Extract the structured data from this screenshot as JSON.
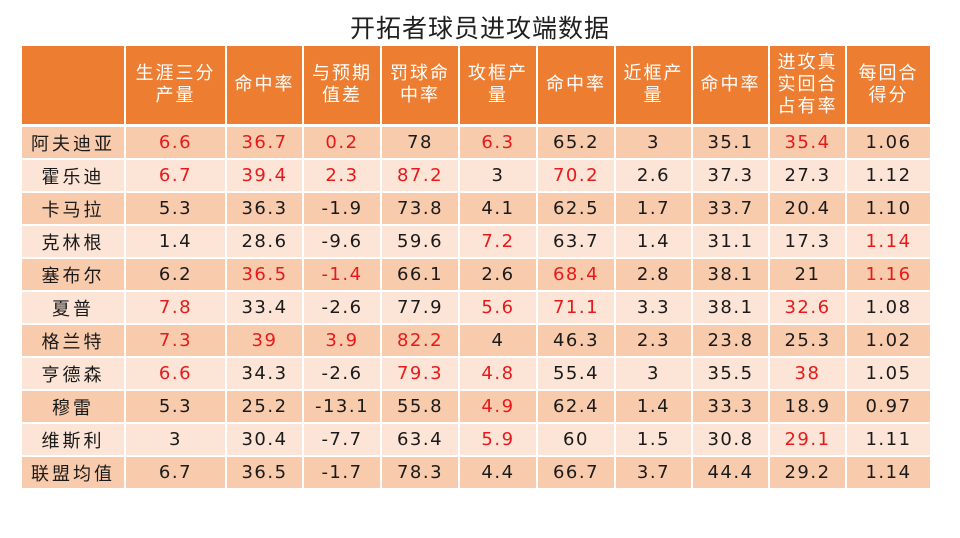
{
  "title": "开拓者球员进攻端数据",
  "colors": {
    "header_bg": "#ed7d31",
    "row_odd": "#f8cbad",
    "row_even": "#fce4d6",
    "highlight": "#e8191a"
  },
  "chart_data": {
    "type": "table",
    "title": "开拓者球员进攻端数据",
    "columns": [
      "",
      "生涯三分产量",
      "命中率",
      "与预期值差",
      "罚球命中率",
      "攻框产量",
      "命中率",
      "近框产量",
      "命中率",
      "进攻真实回合占有率",
      "每回合得分"
    ],
    "rows": [
      {
        "name": "阿夫迪亚",
        "values": [
          "6.6",
          "36.7",
          "0.2",
          "78",
          "6.3",
          "65.2",
          "3",
          "35.1",
          "35.4",
          "1.06"
        ],
        "highlight": [
          0,
          1,
          2,
          4,
          8
        ]
      },
      {
        "name": "霍乐迪",
        "values": [
          "6.7",
          "39.4",
          "2.3",
          "87.2",
          "3",
          "70.2",
          "2.6",
          "37.3",
          "27.3",
          "1.12"
        ],
        "highlight": [
          0,
          1,
          2,
          3,
          5
        ]
      },
      {
        "name": "卡马拉",
        "values": [
          "5.3",
          "36.3",
          "-1.9",
          "73.8",
          "4.1",
          "62.5",
          "1.7",
          "33.7",
          "20.4",
          "1.10"
        ],
        "highlight": []
      },
      {
        "name": "克林根",
        "values": [
          "1.4",
          "28.6",
          "-9.6",
          "59.6",
          "7.2",
          "63.7",
          "1.4",
          "31.1",
          "17.3",
          "1.14"
        ],
        "highlight": [
          4,
          9
        ]
      },
      {
        "name": "塞布尔",
        "values": [
          "6.2",
          "36.5",
          "-1.4",
          "66.1",
          "2.6",
          "68.4",
          "2.8",
          "38.1",
          "21",
          "1.16"
        ],
        "highlight": [
          1,
          2,
          5,
          9
        ]
      },
      {
        "name": "夏普",
        "values": [
          "7.8",
          "33.4",
          "-2.6",
          "77.9",
          "5.6",
          "71.1",
          "3.3",
          "38.1",
          "32.6",
          "1.08"
        ],
        "highlight": [
          0,
          4,
          5,
          8
        ]
      },
      {
        "name": "格兰特",
        "values": [
          "7.3",
          "39",
          "3.9",
          "82.2",
          "4",
          "46.3",
          "2.3",
          "23.8",
          "25.3",
          "1.02"
        ],
        "highlight": [
          0,
          1,
          2,
          3
        ]
      },
      {
        "name": "亨德森",
        "values": [
          "6.6",
          "34.3",
          "-2.6",
          "79.3",
          "4.8",
          "55.4",
          "3",
          "35.5",
          "38",
          "1.05"
        ],
        "highlight": [
          0,
          3,
          4,
          8
        ]
      },
      {
        "name": "穆雷",
        "values": [
          "5.3",
          "25.2",
          "-13.1",
          "55.8",
          "4.9",
          "62.4",
          "1.4",
          "33.3",
          "18.9",
          "0.97"
        ],
        "highlight": [
          4
        ]
      },
      {
        "name": "维斯利",
        "values": [
          "3",
          "30.4",
          "-7.7",
          "63.4",
          "5.9",
          "60",
          "1.5",
          "30.8",
          "29.1",
          "1.11"
        ],
        "highlight": [
          4,
          8
        ]
      },
      {
        "name": "联盟均值",
        "values": [
          "6.7",
          "36.5",
          "-1.7",
          "78.3",
          "4.4",
          "66.7",
          "3.7",
          "44.4",
          "29.2",
          "1.14"
        ],
        "highlight": []
      }
    ]
  }
}
